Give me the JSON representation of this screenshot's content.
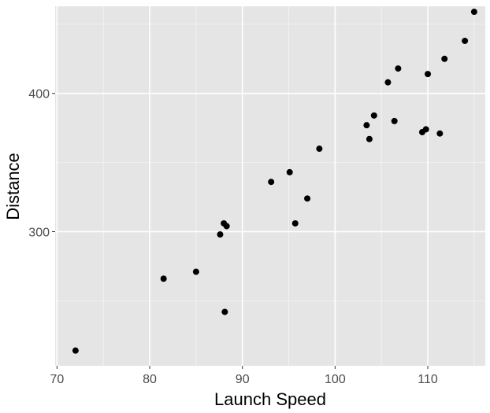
{
  "chart_data": {
    "type": "scatter",
    "title": "",
    "xlabel": "Launch Speed",
    "ylabel": "Distance",
    "xlim": [
      69.8,
      116.2
    ],
    "ylim": [
      203,
      463
    ],
    "x_ticks": [
      70,
      80,
      90,
      100,
      110
    ],
    "x_tick_labels": [
      "70",
      "80",
      "90",
      "100",
      "110"
    ],
    "x_minor_ticks": [
      75,
      85,
      95,
      105,
      115
    ],
    "y_ticks": [
      300,
      400
    ],
    "y_tick_labels": [
      "300",
      "400"
    ],
    "y_minor_ticks": [
      250,
      350,
      450
    ],
    "grid": true,
    "legend": "none",
    "colors": {
      "panel": "#e5e5e5",
      "grid_major": "#ffffff",
      "grid_minor": "#f2f2f2",
      "point": "#000000",
      "tick_text": "#4d4d4d",
      "tick_mark": "#333333"
    },
    "series": [
      {
        "points": [
          {
            "x": 72.0,
            "y": 214
          },
          {
            "x": 81.5,
            "y": 266
          },
          {
            "x": 85.0,
            "y": 271
          },
          {
            "x": 87.6,
            "y": 298
          },
          {
            "x": 88.0,
            "y": 306
          },
          {
            "x": 88.3,
            "y": 304
          },
          {
            "x": 88.1,
            "y": 242
          },
          {
            "x": 93.1,
            "y": 336
          },
          {
            "x": 95.1,
            "y": 343
          },
          {
            "x": 95.7,
            "y": 306
          },
          {
            "x": 97.0,
            "y": 324
          },
          {
            "x": 98.3,
            "y": 360
          },
          {
            "x": 103.4,
            "y": 377
          },
          {
            "x": 103.7,
            "y": 367
          },
          {
            "x": 104.2,
            "y": 384
          },
          {
            "x": 105.7,
            "y": 408
          },
          {
            "x": 106.4,
            "y": 380
          },
          {
            "x": 106.8,
            "y": 418
          },
          {
            "x": 109.4,
            "y": 372
          },
          {
            "x": 109.8,
            "y": 374
          },
          {
            "x": 110.0,
            "y": 414
          },
          {
            "x": 111.3,
            "y": 371
          },
          {
            "x": 111.8,
            "y": 425
          },
          {
            "x": 114.0,
            "y": 438
          },
          {
            "x": 115.0,
            "y": 459
          }
        ]
      }
    ]
  }
}
